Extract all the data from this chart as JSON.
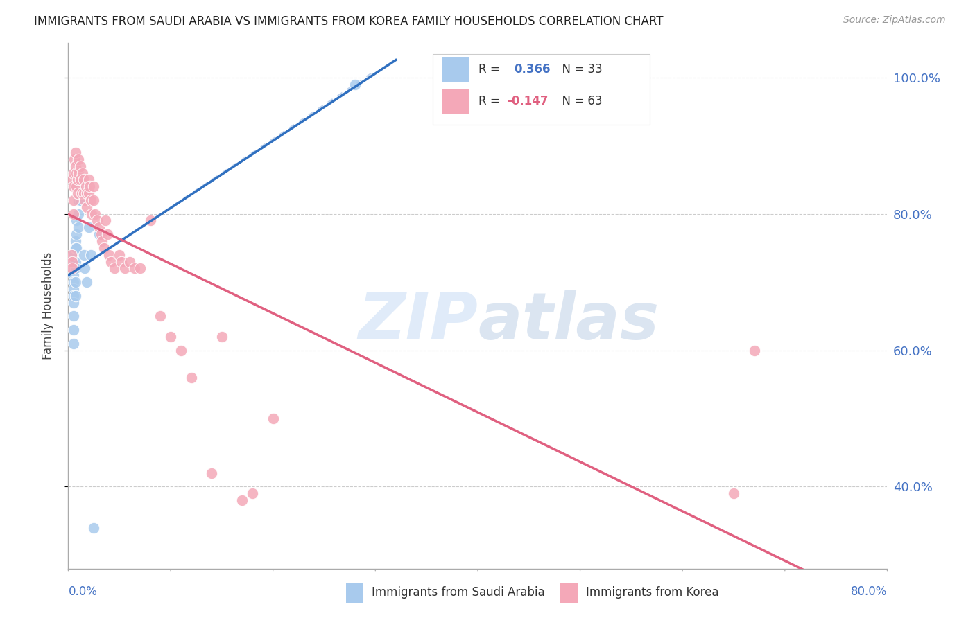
{
  "title": "IMMIGRANTS FROM SAUDI ARABIA VS IMMIGRANTS FROM KOREA FAMILY HOUSEHOLDS CORRELATION CHART",
  "source": "Source: ZipAtlas.com",
  "ylabel": "Family Households",
  "xlim": [
    0.0,
    0.8
  ],
  "ylim": [
    0.28,
    1.05
  ],
  "ytick_vals": [
    0.4,
    0.6,
    0.8,
    1.0
  ],
  "ytick_labels": [
    "40.0%",
    "60.0%",
    "80.0%",
    "100.0%"
  ],
  "blue_color": "#a8caed",
  "pink_color": "#f4a8b8",
  "trend_blue": "#3070c0",
  "trend_pink": "#e06080",
  "diag_color": "#b0c8e8",
  "saudi_x": [
    0.005,
    0.005,
    0.005,
    0.005,
    0.005,
    0.005,
    0.005,
    0.005,
    0.005,
    0.005,
    0.005,
    0.007,
    0.007,
    0.007,
    0.007,
    0.007,
    0.007,
    0.008,
    0.008,
    0.008,
    0.01,
    0.01,
    0.01,
    0.012,
    0.012,
    0.015,
    0.016,
    0.018,
    0.02,
    0.022,
    0.025,
    0.03,
    0.28
  ],
  "saudi_y": [
    0.74,
    0.73,
    0.72,
    0.71,
    0.7,
    0.69,
    0.68,
    0.67,
    0.65,
    0.63,
    0.61,
    0.76,
    0.75,
    0.73,
    0.72,
    0.7,
    0.68,
    0.79,
    0.77,
    0.75,
    0.82,
    0.8,
    0.78,
    0.84,
    0.82,
    0.74,
    0.72,
    0.7,
    0.78,
    0.74,
    0.34,
    0.77,
    0.99
  ],
  "korea_x": [
    0.003,
    0.004,
    0.004,
    0.004,
    0.005,
    0.005,
    0.005,
    0.005,
    0.006,
    0.007,
    0.007,
    0.008,
    0.008,
    0.009,
    0.009,
    0.01,
    0.01,
    0.012,
    0.012,
    0.013,
    0.014,
    0.015,
    0.015,
    0.016,
    0.017,
    0.018,
    0.018,
    0.02,
    0.02,
    0.021,
    0.022,
    0.023,
    0.025,
    0.025,
    0.026,
    0.028,
    0.03,
    0.032,
    0.033,
    0.035,
    0.036,
    0.038,
    0.04,
    0.042,
    0.045,
    0.05,
    0.052,
    0.055,
    0.06,
    0.065,
    0.07,
    0.08,
    0.09,
    0.1,
    0.11,
    0.12,
    0.14,
    0.15,
    0.17,
    0.18,
    0.2,
    0.65,
    0.67
  ],
  "korea_y": [
    0.74,
    0.73,
    0.72,
    0.85,
    0.86,
    0.84,
    0.82,
    0.8,
    0.88,
    0.89,
    0.87,
    0.86,
    0.84,
    0.85,
    0.83,
    0.88,
    0.86,
    0.87,
    0.85,
    0.83,
    0.86,
    0.85,
    0.83,
    0.82,
    0.84,
    0.83,
    0.81,
    0.85,
    0.83,
    0.84,
    0.82,
    0.8,
    0.84,
    0.82,
    0.8,
    0.79,
    0.78,
    0.77,
    0.76,
    0.75,
    0.79,
    0.77,
    0.74,
    0.73,
    0.72,
    0.74,
    0.73,
    0.72,
    0.73,
    0.72,
    0.72,
    0.79,
    0.65,
    0.62,
    0.6,
    0.56,
    0.42,
    0.62,
    0.38,
    0.39,
    0.5,
    0.39,
    0.6
  ],
  "r_saudi": 0.366,
  "n_saudi": 33,
  "r_korea": -0.147,
  "n_korea": 63,
  "legend_label1": "R =  0.366   N = 33",
  "legend_label2": "R = -0.147   N = 63",
  "bottom_label1": "Immigrants from Saudi Arabia",
  "bottom_label2": "Immigrants from Korea"
}
